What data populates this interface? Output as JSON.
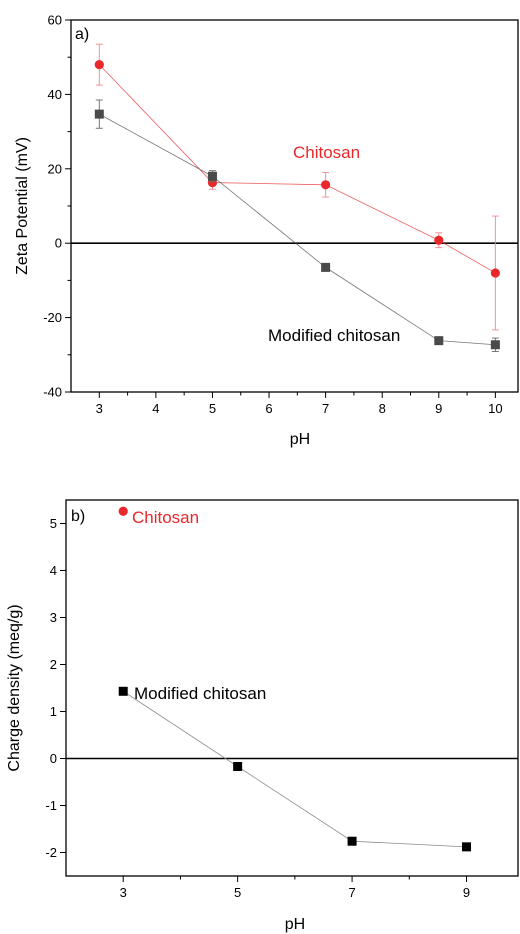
{
  "chart_data": [
    {
      "type": "line",
      "panel_label": "a)",
      "xlabel": "pH",
      "ylabel": "Zeta Potential (mV)",
      "xlim": [
        2.5,
        10.4
      ],
      "ylim": [
        -40,
        60
      ],
      "x_ticks": [
        3,
        4,
        5,
        6,
        7,
        8,
        9,
        10
      ],
      "y_ticks": [
        -40,
        -20,
        0,
        20,
        40,
        60
      ],
      "zero_line": true,
      "grid": false,
      "series": [
        {
          "name": "Chitosan",
          "color": "#e8282b",
          "marker": "circle",
          "x": [
            3,
            5,
            7,
            9,
            10
          ],
          "y": [
            48,
            16.3,
            15.7,
            0.8,
            -8
          ],
          "err": [
            5.5,
            1.8,
            3.3,
            2.0,
            15.3
          ]
        },
        {
          "name": "Modified chitosan",
          "color": "#4a4a4a",
          "marker": "square",
          "x": [
            3,
            5,
            7,
            9,
            10
          ],
          "y": [
            34.7,
            18,
            -6.5,
            -26.2,
            -27.3
          ],
          "err": [
            3.8,
            1.5,
            0.8,
            0.9,
            1.8
          ]
        }
      ]
    },
    {
      "type": "line",
      "panel_label": "b)",
      "xlabel": "pH",
      "ylabel": "Charge density (meq/g)",
      "xlim": [
        2,
        9.9
      ],
      "ylim": [
        -2.5,
        5.5
      ],
      "x_ticks": [
        3,
        5,
        7,
        9
      ],
      "y_ticks": [
        -2,
        -1,
        0,
        1,
        2,
        3,
        4,
        5
      ],
      "zero_line": true,
      "grid": false,
      "series": [
        {
          "name": "Chitosan",
          "color": "#e8282b",
          "marker": "circle",
          "x": [
            3
          ],
          "y": [
            5.26
          ]
        },
        {
          "name": "Modified chitosan",
          "color": "#000000",
          "marker": "square",
          "x": [
            3,
            5,
            7,
            9
          ],
          "y": [
            1.43,
            -0.17,
            -1.76,
            -1.88
          ]
        }
      ]
    }
  ]
}
